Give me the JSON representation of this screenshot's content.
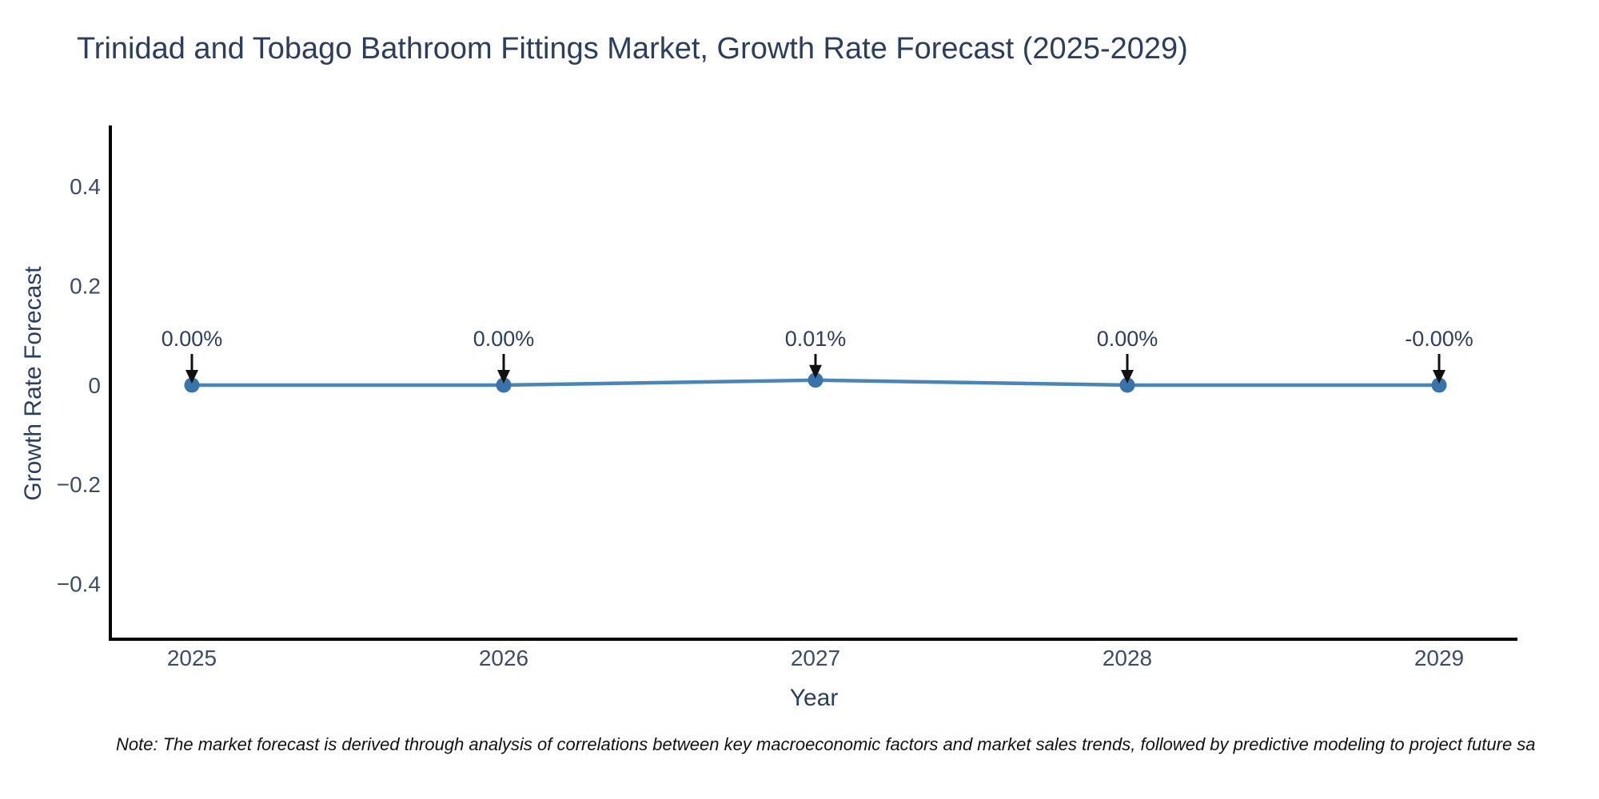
{
  "chart_data": {
    "type": "line",
    "title": "Trinidad and Tobago Bathroom Fittings Market, Growth Rate Forecast (2025-2029)",
    "xlabel": "Year",
    "ylabel": "Growth Rate Forecast",
    "categories": [
      "2025",
      "2026",
      "2027",
      "2028",
      "2029"
    ],
    "x": [
      2025,
      2026,
      2027,
      2028,
      2029
    ],
    "series": [
      {
        "name": "Growth Rate Forecast",
        "values": [
          0.0,
          0.0,
          0.01,
          0.0,
          -0.0
        ]
      }
    ],
    "point_labels": [
      "0.00%",
      "0.00%",
      "0.01%",
      "0.00%",
      "-0.00%"
    ],
    "yticks": {
      "values": [
        0.4,
        0.2,
        0,
        -0.2,
        -0.4
      ],
      "labels": [
        "0.4",
        "0.2",
        "0",
        "−0.2",
        "−0.4"
      ]
    },
    "ylim": [
      -0.51,
      0.52
    ],
    "grid": false,
    "legend": "none",
    "annotation_arrows": true,
    "colors": {
      "line": "#4a85b6",
      "marker": "#3a73a9",
      "arrow": "#111111",
      "axis": "#000000",
      "title_text": "#2c3e5d",
      "tick_text": "#3d4c66"
    }
  },
  "footer": {
    "note": "Note: The market forecast is derived through analysis of correlations between key macroeconomic factors and market sales trends, followed by predictive modeling to project future sa"
  }
}
